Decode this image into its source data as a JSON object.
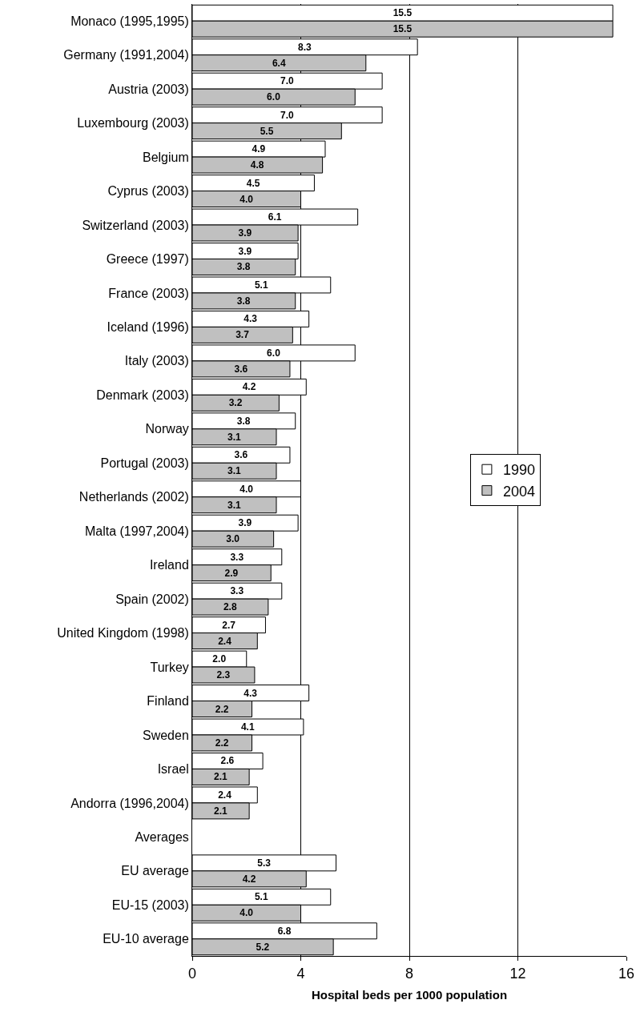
{
  "chart_data": {
    "type": "bar",
    "orientation": "horizontal",
    "xlabel": "Hospital beds per 1000 population",
    "categories": [
      "Monaco (1995,1995)",
      "Germany (1991,2004)",
      "Austria (2003)",
      "Luxembourg (2003)",
      "Belgium",
      "Cyprus (2003)",
      "Switzerland (2003)",
      "Greece (1997)",
      "France (2003)",
      "Iceland (1996)",
      "Italy (2003)",
      "Denmark (2003)",
      "Norway",
      "Portugal (2003)",
      "Netherlands (2002)",
      "Malta (1997,2004)",
      "Ireland",
      "Spain (2002)",
      "United Kingdom (1998)",
      "Turkey",
      "Finland",
      "Sweden",
      "Israel",
      "Andorra (1996,2004)",
      "Averages",
      "EU average",
      "EU-15 (2003)",
      "EU-10 average"
    ],
    "series": [
      {
        "name": "1990",
        "color": "#ffffff",
        "values": [
          15.5,
          8.3,
          7.0,
          7.0,
          4.9,
          4.5,
          6.1,
          3.9,
          5.1,
          4.3,
          6.0,
          4.2,
          3.8,
          3.6,
          4.0,
          3.9,
          3.3,
          3.3,
          2.7,
          2.0,
          4.3,
          4.1,
          2.6,
          2.4,
          null,
          5.3,
          5.1,
          6.8
        ],
        "value_labels": [
          "15.5",
          "8.3",
          "7.0",
          "7.0",
          "4.9",
          "4.5",
          "6.1",
          "3.9",
          "5.1",
          "4.3",
          "6.0",
          "4.2",
          "3.8",
          "3.6",
          "4.0",
          "3.9",
          "3.3",
          "3.3",
          "2.7",
          "2.0",
          "4.3",
          "4.1",
          "2.6",
          "2.4",
          null,
          "5.3",
          "5.1",
          "6.8"
        ]
      },
      {
        "name": "2004",
        "color": "#c0c0c0",
        "values": [
          15.5,
          6.4,
          6.0,
          5.5,
          4.8,
          4.0,
          3.9,
          3.8,
          3.8,
          3.7,
          3.6,
          3.2,
          3.1,
          3.1,
          3.1,
          3.0,
          2.9,
          2.8,
          2.4,
          2.3,
          2.2,
          2.2,
          2.1,
          2.1,
          null,
          4.2,
          4.0,
          5.2
        ],
        "value_labels": [
          "15.5",
          "6.4",
          "6.0",
          "5.5",
          "4.8",
          "4.0",
          "3.9",
          "3.8",
          "3.8",
          "3.7",
          "3.6",
          "3.2",
          "3.1",
          "3.1",
          "3.1",
          "3.0",
          "2.9",
          "2.8",
          "2.4",
          "2.3",
          "2.2",
          "2.2",
          "2.1",
          "2.1",
          null,
          "4.2",
          "4.0",
          "5.2"
        ]
      }
    ],
    "xlim": [
      0,
      16
    ],
    "xticks": [
      0,
      4,
      8,
      12,
      16
    ],
    "grid": "x",
    "legend": "right"
  }
}
